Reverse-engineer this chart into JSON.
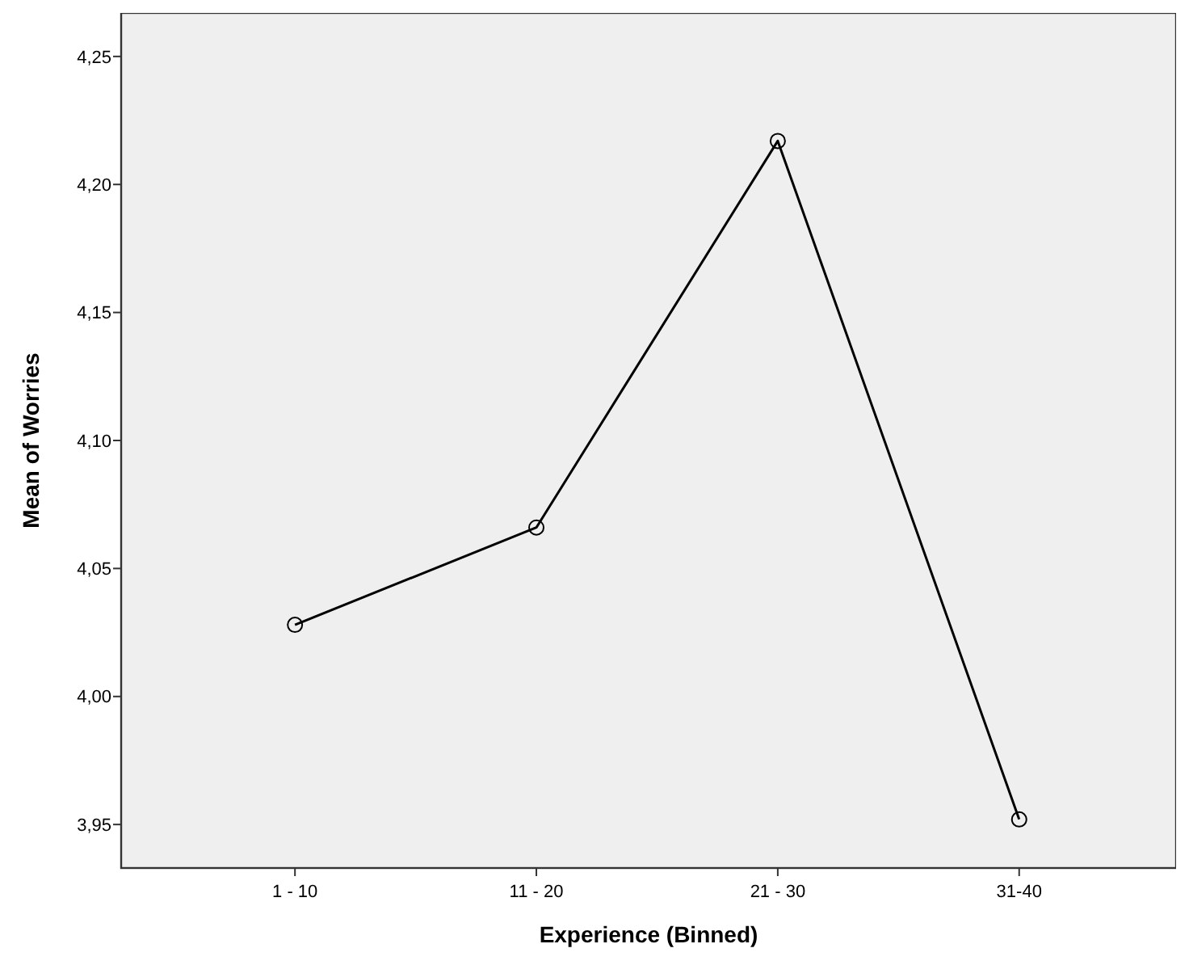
{
  "chart_data": {
    "type": "line",
    "xlabel": "Experience (Binned)",
    "ylabel": "Mean of Worries",
    "categories": [
      "1 - 10",
      "11 - 20",
      "21 - 30",
      "31-40"
    ],
    "series": [
      {
        "color": "#000000",
        "values": [
          4.028,
          4.066,
          4.217,
          3.952
        ]
      }
    ],
    "ylim": [
      3.933,
      4.267
    ],
    "yticks": [
      {
        "value": 3.95,
        "label": "3,95"
      },
      {
        "value": 4.0,
        "label": "4,00"
      },
      {
        "value": 4.05,
        "label": "4,05"
      },
      {
        "value": 4.1,
        "label": "4,10"
      },
      {
        "value": 4.15,
        "label": "4,15"
      },
      {
        "value": 4.2,
        "label": "4,20"
      },
      {
        "value": 4.25,
        "label": "4,25"
      }
    ],
    "grid": false,
    "marker": "circle",
    "line_style": "solid"
  }
}
